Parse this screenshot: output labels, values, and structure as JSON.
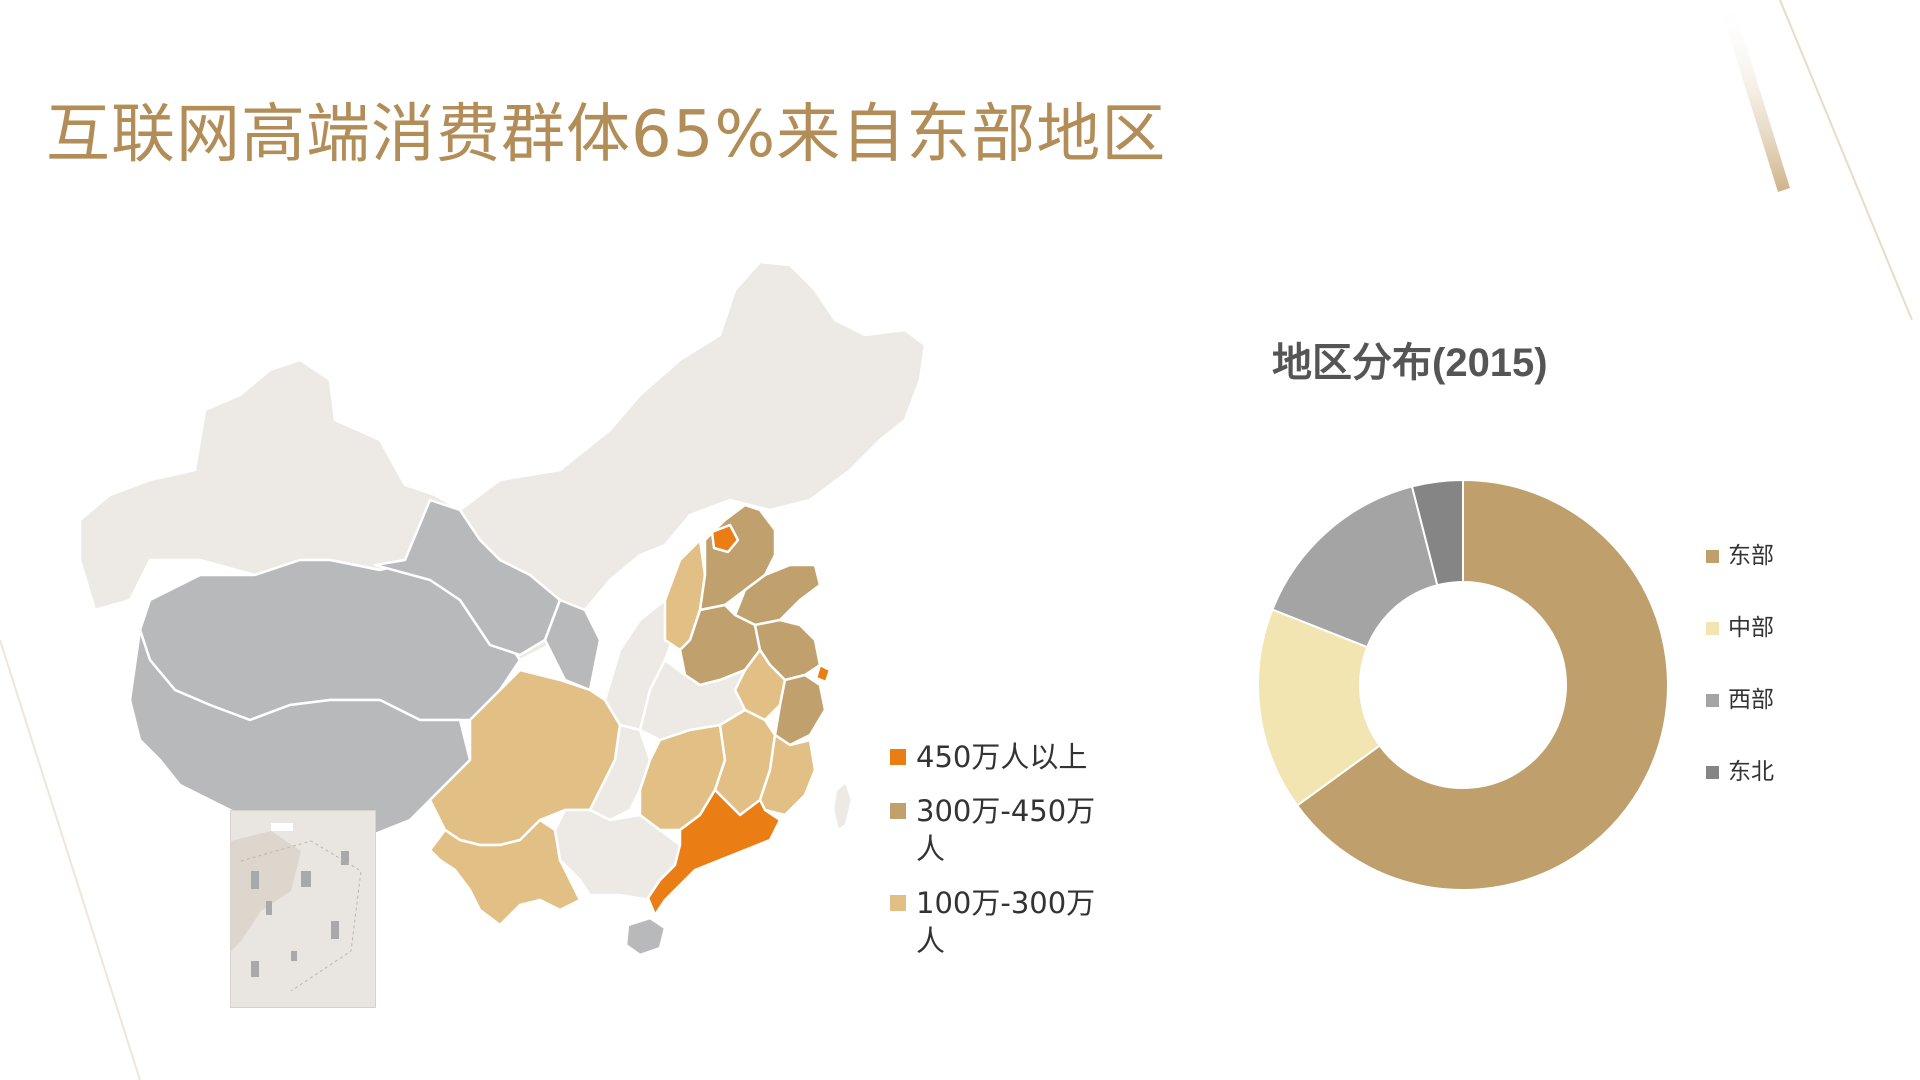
{
  "slide": {
    "title": "互联网高端消费群体65%来自东部地区"
  },
  "colors": {
    "title": "#b28d58",
    "level_450_plus": "#ea7d14",
    "level_300_450": "#c0a06c",
    "level_100_300": "#e2c085",
    "map_other_east": "#ede9e4",
    "map_west": "#b7b9bb",
    "donut_east": "#bf9f6b",
    "donut_central": "#f2e5b2",
    "donut_west": "#a4a4a4",
    "donut_northeast": "#858585"
  },
  "map_legend": [
    {
      "label": "450万人以上",
      "color": "#ea7d14"
    },
    {
      "label": "300万-450万人",
      "color": "#c0a06c"
    },
    {
      "label": "100万-300万人",
      "color": "#e2c085"
    }
  ],
  "chart_data": {
    "type": "pie",
    "donut": true,
    "title": "地区分布(2015)",
    "categories": [
      "东部",
      "中部",
      "西部",
      "东北"
    ],
    "values": [
      65,
      16,
      15,
      4
    ],
    "colors": [
      "#bf9f6b",
      "#f2e5b2",
      "#a4a4a4",
      "#858585"
    ],
    "legend_position": "right"
  }
}
